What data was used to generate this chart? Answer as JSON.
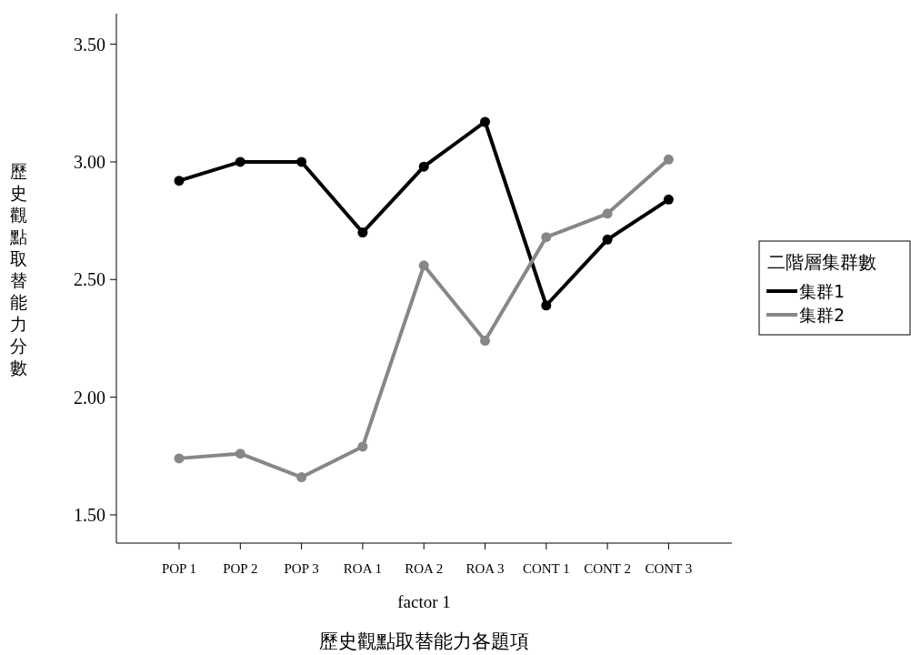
{
  "chart_data": {
    "type": "line",
    "categories": [
      "POP 1",
      "POP 2",
      "POP 3",
      "ROA 1",
      "ROA 2",
      "ROA 3",
      "CONT 1",
      "CONT 2",
      "CONT 3"
    ],
    "series": [
      {
        "name": "集群1",
        "color": "#000000",
        "values": [
          2.92,
          3.0,
          3.0,
          2.7,
          2.98,
          3.17,
          2.39,
          2.67,
          2.84
        ]
      },
      {
        "name": "集群2",
        "color": "#878787",
        "values": [
          1.74,
          1.76,
          1.66,
          1.79,
          2.56,
          2.24,
          2.68,
          2.78,
          3.01
        ]
      }
    ],
    "ylim": [
      1.38,
      3.63
    ],
    "yticks": [
      {
        "value": 1.5,
        "label": "1.50"
      },
      {
        "value": 2.0,
        "label": "2.00"
      },
      {
        "value": 2.5,
        "label": "2.50"
      },
      {
        "value": 3.0,
        "label": "3.00"
      },
      {
        "value": 3.5,
        "label": "3.50"
      }
    ],
    "xlabel": "factor 1",
    "ylabel": "歷史觀點取替能力分數",
    "legend_title": "二階層集群數",
    "annotations": [
      "歷史觀點取替能力各題項"
    ],
    "legend": "right",
    "marker": "circle",
    "line_style": "solid"
  }
}
